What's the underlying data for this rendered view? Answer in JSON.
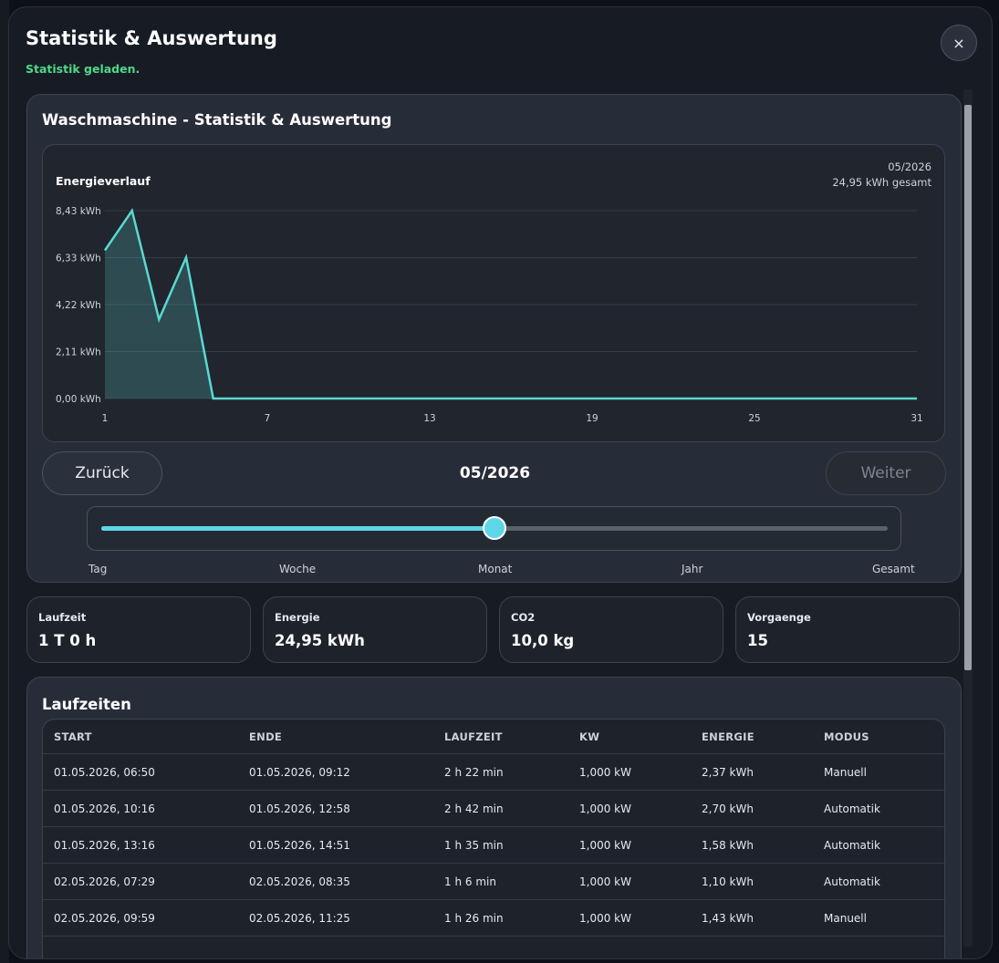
{
  "modal": {
    "title": "Statistik & Auswertung",
    "status": "Statistik geladen.",
    "close_icon": "×"
  },
  "stats": {
    "title": "Waschmaschine - Statistik & Auswertung",
    "nav": {
      "back_label": "Zurück",
      "next_label": "Weiter",
      "period": "05/2026"
    },
    "granularity": {
      "options": [
        "Tag",
        "Woche",
        "Monat",
        "Jahr",
        "Gesamt"
      ],
      "selected": "Monat",
      "selected_index": 2
    }
  },
  "chart_data": {
    "type": "area",
    "title": "Energieverlauf",
    "period": "05/2026",
    "total_label": "24,95 kWh gesamt",
    "x": [
      1,
      2,
      3,
      4,
      5,
      6,
      7,
      8,
      9,
      10,
      11,
      12,
      13,
      14,
      15,
      16,
      17,
      18,
      19,
      20,
      21,
      22,
      23,
      24,
      25,
      26,
      27,
      28,
      29,
      30,
      31
    ],
    "values": [
      6.65,
      8.43,
      3.55,
      6.33,
      0,
      0,
      0,
      0,
      0,
      0,
      0,
      0,
      0,
      0,
      0,
      0,
      0,
      0,
      0,
      0,
      0,
      0,
      0,
      0,
      0,
      0,
      0,
      0,
      0,
      0,
      0
    ],
    "xticks": [
      "1",
      "7",
      "13",
      "19",
      "25",
      "31"
    ],
    "yticks": [
      "8,43 kWh",
      "6,33 kWh",
      "4,22 kWh",
      "2,11 kWh",
      "0,00 kWh"
    ],
    "ylim": [
      0,
      8.43
    ],
    "grid": true,
    "line_color": "#5ad8d2"
  },
  "kpis": [
    {
      "label": "Laufzeit",
      "value": "1 T 0 h"
    },
    {
      "label": "Energie",
      "value": "24,95 kWh"
    },
    {
      "label": "CO2",
      "value": "10,0 kg"
    },
    {
      "label": "Vorgaenge",
      "value": "15"
    }
  ],
  "runs": {
    "title": "Laufzeiten",
    "columns": [
      "START",
      "ENDE",
      "LAUFZEIT",
      "KW",
      "ENERGIE",
      "MODUS"
    ],
    "rows": [
      [
        "01.05.2026, 06:50",
        "01.05.2026, 09:12",
        "2 h 22 min",
        "1,000 kW",
        "2,37 kWh",
        "Manuell"
      ],
      [
        "01.05.2026, 10:16",
        "01.05.2026, 12:58",
        "2 h 42 min",
        "1,000 kW",
        "2,70 kWh",
        "Automatik"
      ],
      [
        "01.05.2026, 13:16",
        "01.05.2026, 14:51",
        "1 h 35 min",
        "1,000 kW",
        "1,58 kWh",
        "Automatik"
      ],
      [
        "02.05.2026, 07:29",
        "02.05.2026, 08:35",
        "1 h 6 min",
        "1,000 kW",
        "1,10 kWh",
        "Automatik"
      ],
      [
        "02.05.2026, 09:59",
        "02.05.2026, 11:25",
        "1 h 26 min",
        "1,000 kW",
        "1,43 kWh",
        "Manuell"
      ]
    ]
  }
}
